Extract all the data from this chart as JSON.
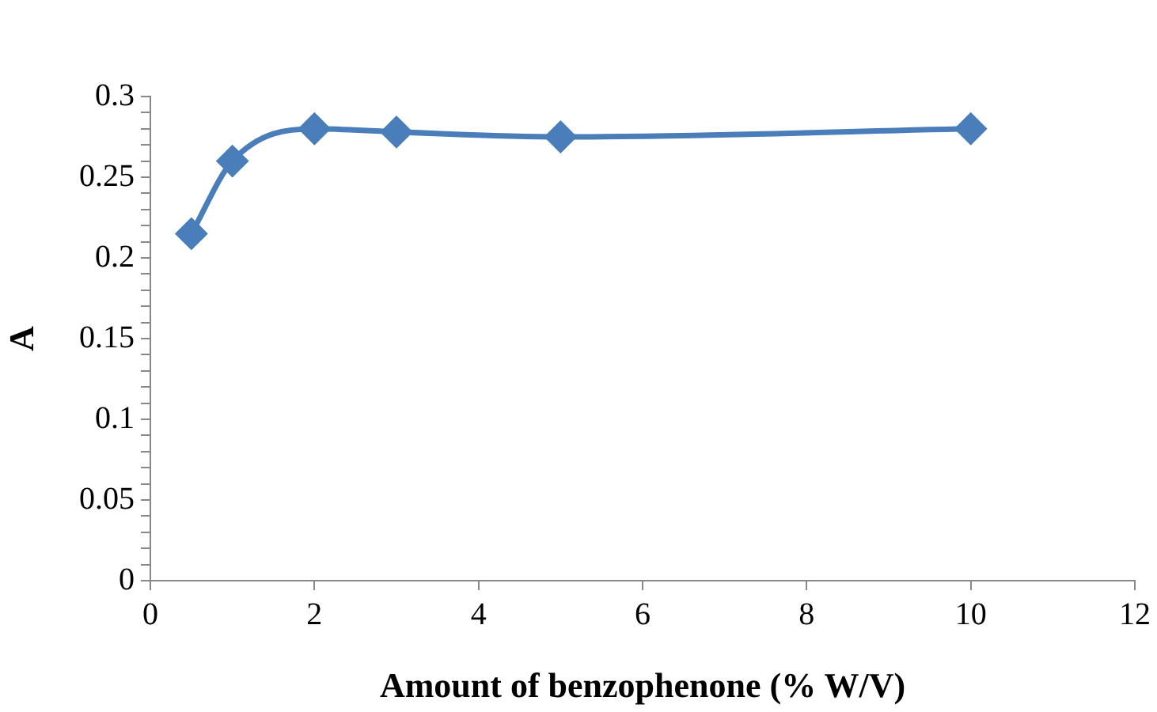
{
  "chart_data": {
    "type": "line",
    "xlabel": "Amount of benzophenone (% W/V)",
    "ylabel": "A",
    "x": [
      0.5,
      1,
      2,
      3,
      5,
      10
    ],
    "series": [
      {
        "color": "#4a7ebb",
        "values": [
          0.215,
          0.26,
          0.28,
          0.278,
          0.275,
          0.28
        ]
      }
    ],
    "xlim": [
      0,
      12
    ],
    "xticks": [
      0,
      2,
      4,
      6,
      8,
      10,
      12
    ],
    "ylim": [
      0,
      0.3
    ],
    "yticks": [
      0,
      {
        "value": 0.01,
        "label": null
      },
      {
        "value": 0.02,
        "label": null
      },
      {
        "value": 0.03,
        "label": null
      },
      {
        "value": 0.04,
        "label": null
      },
      0.05,
      {
        "value": 0.06,
        "label": null
      },
      {
        "value": 0.07,
        "label": null
      },
      {
        "value": 0.08,
        "label": null
      },
      {
        "value": 0.09,
        "label": null
      },
      0.1,
      {
        "value": 0.11,
        "label": null
      },
      {
        "value": 0.12,
        "label": null
      },
      {
        "value": 0.13,
        "label": null
      },
      {
        "value": 0.14,
        "label": null
      },
      0.15,
      {
        "value": 0.16,
        "label": null
      },
      {
        "value": 0.17,
        "label": null
      },
      {
        "value": 0.18,
        "label": null
      },
      {
        "value": 0.19,
        "label": null
      },
      0.2,
      {
        "value": 0.21,
        "label": null
      },
      {
        "value": 0.22,
        "label": null
      },
      {
        "value": 0.23,
        "label": null
      },
      {
        "value": 0.24,
        "label": null
      },
      0.25,
      {
        "value": 0.26,
        "label": null
      },
      {
        "value": 0.27,
        "label": null
      },
      {
        "value": 0.28,
        "label": null
      },
      {
        "value": 0.29,
        "label": null
      },
      0.3
    ],
    "grid": false,
    "legend": false,
    "marker": "diamond",
    "line_style": "solid"
  }
}
